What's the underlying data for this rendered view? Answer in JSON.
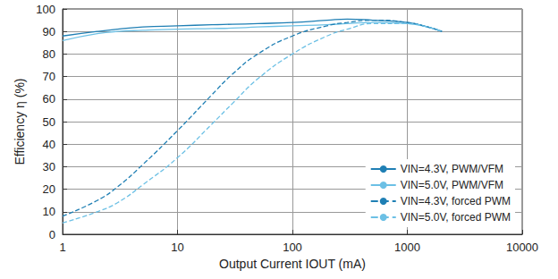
{
  "chart_data": {
    "type": "line",
    "x_label": "Output Current IOUT (mA)",
    "y_label": "Efficiency η (%)",
    "log": "x",
    "grid": true,
    "legend": "lower right",
    "xlim": [
      1,
      10000
    ],
    "xticks": [
      1,
      10,
      100,
      1000,
      10000
    ],
    "ylim": [
      0,
      100
    ],
    "yticks": [
      0,
      10,
      20,
      30,
      40,
      50,
      60,
      70,
      80,
      90,
      100
    ],
    "x": [
      1,
      2,
      3,
      5,
      10,
      20,
      30,
      50,
      100,
      200,
      300,
      500,
      1000,
      1500,
      2000
    ],
    "series": [
      {
        "name": "VIN=4.3V, PWM/VFM",
        "color": "#1f7fb4",
        "line_style": "solid",
        "values": [
          88,
          90,
          91,
          92,
          92.5,
          93,
          93.2,
          93.5,
          94,
          95,
          95.5,
          95,
          94,
          92,
          90
        ]
      },
      {
        "name": "VIN=5.0V, PWM/VFM",
        "color": "#6cc0e5",
        "line_style": "solid",
        "values": [
          86,
          89,
          90,
          90.5,
          91,
          91.3,
          91.5,
          92,
          92.5,
          93,
          93.5,
          94,
          93.5,
          92,
          90
        ]
      },
      {
        "name": "VIN=4.3V, forced PWM",
        "color": "#1f7fb4",
        "line_style": "dashed",
        "values": [
          8,
          15,
          21,
          31,
          46,
          62,
          71,
          80,
          88,
          92.5,
          94,
          95,
          94,
          92,
          90
        ]
      },
      {
        "name": "VIN=5.0V, forced PWM",
        "color": "#6cc0e5",
        "line_style": "dashed",
        "values": [
          5,
          10,
          14,
          22,
          34,
          49,
          58,
          69,
          80,
          88,
          91,
          93.5,
          93.5,
          92,
          90
        ]
      }
    ]
  }
}
